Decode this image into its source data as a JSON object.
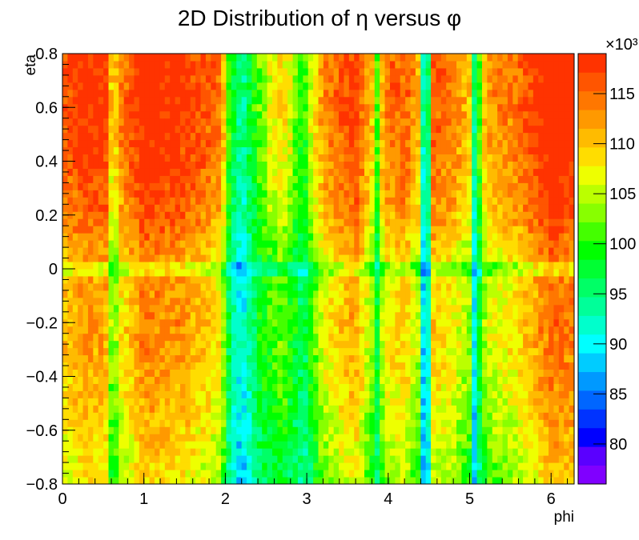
{
  "chart_data": {
    "type": "heatmap",
    "title": "2D Distribution of η versus φ",
    "xlabel": "phi",
    "ylabel": "eta",
    "xlim": [
      0,
      6.283
    ],
    "ylim": [
      -0.8,
      0.8
    ],
    "x_ticks": [
      0,
      1,
      2,
      3,
      4,
      5,
      6
    ],
    "y_ticks": [
      -0.8,
      -0.6,
      -0.4,
      -0.2,
      0,
      0.2,
      0.4,
      0.6,
      0.8
    ],
    "x_tick_labels": [
      "0",
      "1",
      "2",
      "3",
      "4",
      "5",
      "6"
    ],
    "y_tick_labels": [
      "−0.8",
      "−0.6",
      "−0.4",
      "−0.2",
      "0",
      "0.2",
      "0.4",
      "0.6",
      "0.8"
    ],
    "grid": false,
    "z_scale_label": "×10³",
    "z_range": [
      76,
      119
    ],
    "z_ticks": [
      80,
      85,
      90,
      95,
      100,
      105,
      110,
      115
    ],
    "z_tick_labels": [
      "80",
      "85",
      "90",
      "95",
      "100",
      "105",
      "110",
      "115"
    ],
    "palette": [
      "#8000ff",
      "#5a00ff",
      "#0000ff",
      "#0033ff",
      "#0066ff",
      "#0099ff",
      "#00ccff",
      "#00ffff",
      "#00ffcc",
      "#00ff99",
      "#00ff66",
      "#00ff33",
      "#00ff00",
      "#44ff00",
      "#88ff00",
      "#bbff00",
      "#eeff00",
      "#ffdd00",
      "#ffbb00",
      "#ff9900",
      "#ff7700",
      "#ff5500",
      "#ff3300"
    ],
    "phi_bins": 100,
    "eta_bins": 60,
    "phi_profile_phi": [
      0.0,
      0.3,
      0.55,
      0.62,
      0.7,
      1.0,
      1.4,
      1.8,
      1.95,
      2.05,
      2.2,
      2.4,
      2.7,
      2.95,
      3.2,
      3.6,
      3.8,
      3.85,
      3.95,
      4.2,
      4.4,
      4.45,
      4.55,
      4.8,
      5.0,
      5.05,
      5.2,
      5.6,
      6.0,
      6.283
    ],
    "phi_profile_rate": [
      110,
      113,
      112,
      100,
      108,
      114,
      113,
      110,
      108,
      96,
      90,
      98,
      103,
      96,
      107,
      112,
      104,
      96,
      108,
      110,
      104,
      80,
      110,
      108,
      104,
      90,
      106,
      109,
      115,
      114
    ],
    "eta_profile_eta": [
      -0.8,
      -0.6,
      -0.4,
      -0.2,
      0.0,
      0.2,
      0.4,
      0.6,
      0.8
    ],
    "eta_profile_offset": [
      -5,
      -3,
      -1,
      0,
      -1,
      3,
      5,
      6,
      6
    ]
  }
}
